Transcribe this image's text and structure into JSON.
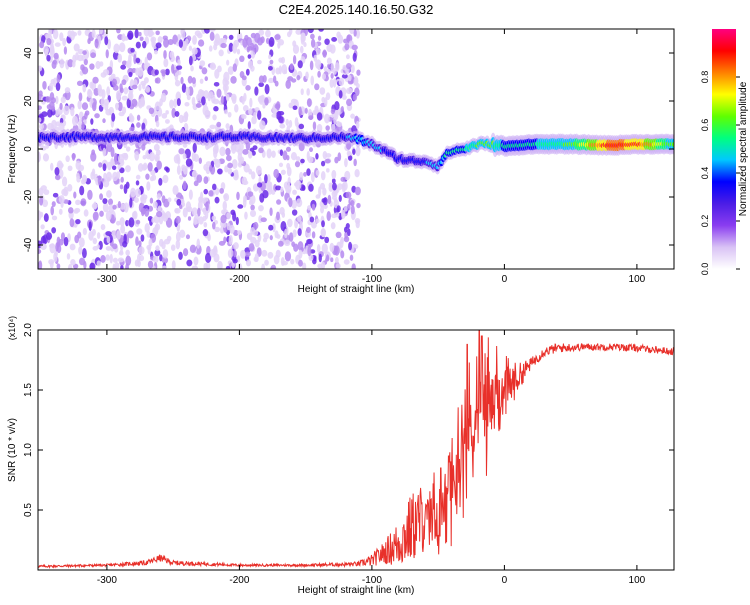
{
  "title": "C2E4.2025.140.16.50.G32",
  "chart_data": [
    {
      "type": "heatmap",
      "xlabel": "Height of straight line (km)",
      "ylabel": "Frequency (Hz)",
      "xlim": [
        -352,
        128
      ],
      "ylim": [
        -50,
        50
      ],
      "xticks": [
        -300,
        -200,
        -100,
        0,
        100
      ],
      "yticks": [
        -40,
        -20,
        0,
        20,
        40
      ],
      "colorbar": {
        "label": "Normalized spectral amplitude",
        "range": [
          0,
          1
        ],
        "ticks": [
          0.0,
          0.2,
          0.4,
          0.6,
          0.8
        ],
        "tick_labels": [
          "0.0",
          "0.2",
          "0.4",
          "0.6",
          "0.8"
        ],
        "colors": [
          "#ffffff",
          "#d9c2f5",
          "#8a3df0",
          "#4b1de6",
          "#0000ff",
          "#00c8ff",
          "#00ff80",
          "#60ff00",
          "#ffff00",
          "#ff8000",
          "#ff0000",
          "#ff0080"
        ]
      },
      "noise_region_x": [
        -352,
        -110
      ],
      "ridge": {
        "x": [
          -352,
          -300,
          -250,
          -200,
          -150,
          -120,
          -110,
          -100,
          -90,
          -80,
          -70,
          -60,
          -50,
          -45,
          -40,
          -30,
          -20,
          -10,
          0,
          20,
          50,
          80,
          100,
          128
        ],
        "y": [
          5,
          5,
          5,
          5,
          4.5,
          5,
          4,
          2,
          -1,
          -4,
          -5,
          -5,
          -7,
          -3,
          -1,
          0,
          2,
          2,
          1,
          2,
          2,
          1.5,
          2,
          2
        ],
        "level": [
          0.35,
          0.35,
          0.35,
          0.35,
          0.35,
          0.4,
          0.5,
          0.45,
          0.4,
          0.4,
          0.4,
          0.4,
          0.45,
          0.5,
          0.5,
          0.55,
          0.6,
          0.6,
          0.55,
          0.55,
          0.6,
          0.95,
          0.9,
          0.6
        ]
      }
    },
    {
      "type": "line",
      "xlabel": "Height of straight line (km)",
      "ylabel": "SNR (10 * v/v)",
      "y_multiplier": "(x10⁴)",
      "xlim": [
        -352,
        128
      ],
      "ylim": [
        0,
        2
      ],
      "xticks": [
        -300,
        -200,
        -100,
        0,
        100
      ],
      "yticks": [
        0.5,
        1.0,
        1.5,
        2.0
      ],
      "series": [
        {
          "color": "#e8302a",
          "x": [
            -352,
            -300,
            -270,
            -260,
            -250,
            -200,
            -150,
            -110,
            -100,
            -90,
            -80,
            -70,
            -60,
            -55,
            -50,
            -45,
            -40,
            -35,
            -30,
            -25,
            -20,
            -15,
            -10,
            -5,
            0,
            10,
            20,
            30,
            40,
            60,
            80,
            100,
            128
          ],
          "y": [
            0.03,
            0.04,
            0.06,
            0.1,
            0.06,
            0.04,
            0.04,
            0.05,
            0.08,
            0.15,
            0.22,
            0.35,
            0.45,
            0.5,
            0.4,
            0.55,
            0.7,
            0.9,
            1.05,
            1.2,
            1.3,
            1.35,
            1.4,
            1.45,
            1.5,
            1.6,
            1.72,
            1.82,
            1.85,
            1.86,
            1.86,
            1.85,
            1.82
          ],
          "variation": [
            0.01,
            0.01,
            0.02,
            0.03,
            0.02,
            0.01,
            0.01,
            0.02,
            0.05,
            0.1,
            0.2,
            0.3,
            0.3,
            0.35,
            0.4,
            0.45,
            0.5,
            0.55,
            0.6,
            0.65,
            0.7,
            0.7,
            0.55,
            0.4,
            0.3,
            0.12,
            0.05,
            0.04,
            0.04,
            0.03,
            0.03,
            0.03,
            0.03
          ],
          "peaks": [
            [
              -28,
              1.88
            ],
            [
              -19,
              2.0
            ],
            [
              -17,
              1.95
            ],
            [
              -48,
              0.85
            ],
            [
              -42,
              0.95
            ]
          ]
        }
      ]
    }
  ]
}
